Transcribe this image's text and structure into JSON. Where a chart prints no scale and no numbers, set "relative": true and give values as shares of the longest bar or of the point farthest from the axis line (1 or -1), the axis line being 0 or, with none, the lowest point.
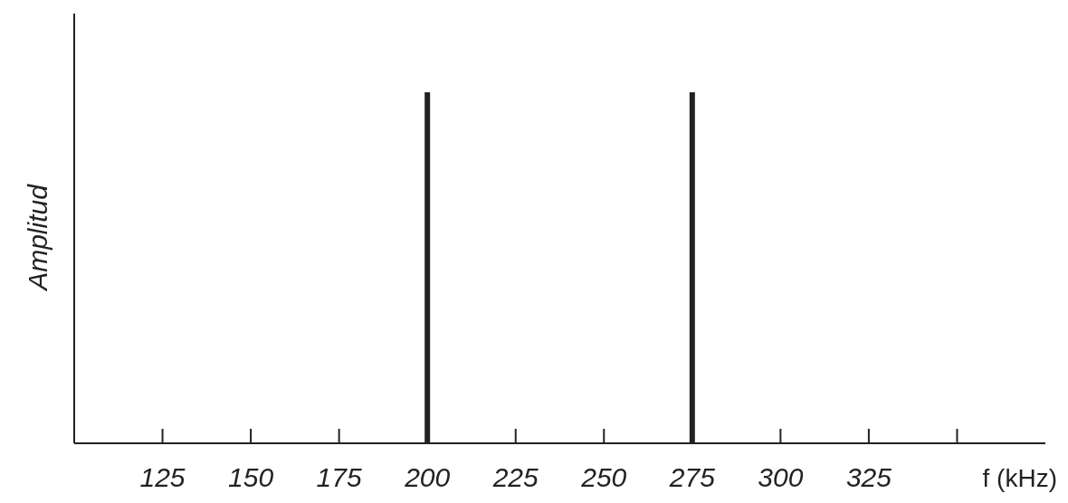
{
  "chart_data": {
    "type": "bar",
    "ylabel": "Amplitud",
    "xlabel": "f (kHz)",
    "x": [
      200,
      275
    ],
    "values": [
      1,
      1
    ],
    "color": "#222222",
    "relative": true,
    "xlim": [
      100,
      375
    ],
    "xticks": [
      125,
      150,
      175,
      200,
      225,
      250,
      275,
      300,
      325,
      {
        "value": 350,
        "label": null
      }
    ],
    "grid": false,
    "legend": false
  }
}
